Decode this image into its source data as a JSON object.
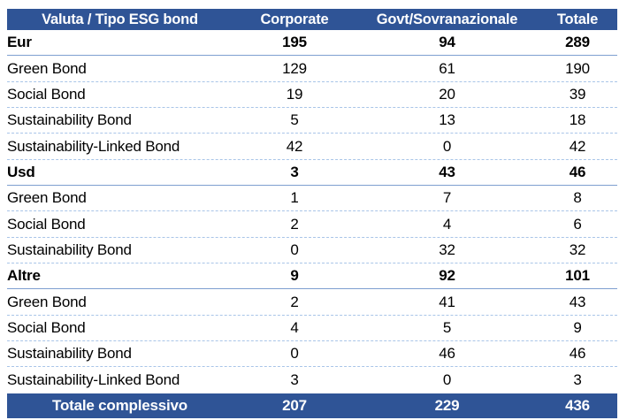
{
  "colors": {
    "header_bg": "#2F5496",
    "header_text": "#FFFFFF",
    "body_text": "#000000",
    "solid_border": "#7E9FD0",
    "dotted_border": "#A9C5E8",
    "page_bg": "#FFFFFF"
  },
  "chart_data": {
    "type": "table",
    "title": "",
    "columns": [
      "Valuta / Tipo ESG bond",
      "Corporate",
      "Govt/Sovranazionale",
      "Totale"
    ],
    "rows": [
      {
        "label": "Eur",
        "group": true,
        "values": [
          195,
          94,
          289
        ]
      },
      {
        "label": "Green Bond",
        "group": false,
        "values": [
          129,
          61,
          190
        ]
      },
      {
        "label": "Social Bond",
        "group": false,
        "values": [
          19,
          20,
          39
        ]
      },
      {
        "label": "Sustainability Bond",
        "group": false,
        "values": [
          5,
          13,
          18
        ]
      },
      {
        "label": "Sustainability-Linked Bond",
        "group": false,
        "values": [
          42,
          0,
          42
        ]
      },
      {
        "label": "Usd",
        "group": true,
        "values": [
          3,
          43,
          46
        ]
      },
      {
        "label": "Green Bond",
        "group": false,
        "values": [
          1,
          7,
          8
        ]
      },
      {
        "label": "Social Bond",
        "group": false,
        "values": [
          2,
          4,
          6
        ]
      },
      {
        "label": "Sustainability Bond",
        "group": false,
        "values": [
          0,
          32,
          32
        ]
      },
      {
        "label": "Altre",
        "group": true,
        "values": [
          9,
          92,
          101
        ]
      },
      {
        "label": "Green Bond",
        "group": false,
        "values": [
          2,
          41,
          43
        ]
      },
      {
        "label": "Social Bond",
        "group": false,
        "values": [
          4,
          5,
          9
        ]
      },
      {
        "label": "Sustainability Bond",
        "group": false,
        "values": [
          0,
          46,
          46
        ]
      },
      {
        "label": "Sustainability-Linked Bond",
        "group": false,
        "values": [
          3,
          0,
          3
        ]
      }
    ],
    "footer": {
      "label": "Totale complessivo",
      "values": [
        207,
        229,
        436
      ]
    },
    "layout": {
      "grid": "horizontal-separators-only",
      "group_row_separator": "solid",
      "detail_row_separator": "dashed"
    }
  }
}
